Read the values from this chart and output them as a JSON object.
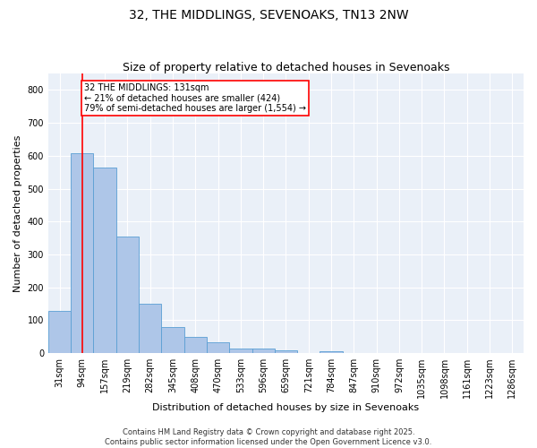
{
  "title": "32, THE MIDDLINGS, SEVENOAKS, TN13 2NW",
  "subtitle": "Size of property relative to detached houses in Sevenoaks",
  "xlabel": "Distribution of detached houses by size in Sevenoaks",
  "ylabel": "Number of detached properties",
  "bar_labels": [
    "31sqm",
    "94sqm",
    "157sqm",
    "219sqm",
    "282sqm",
    "345sqm",
    "408sqm",
    "470sqm",
    "533sqm",
    "596sqm",
    "659sqm",
    "721sqm",
    "784sqm",
    "847sqm",
    "910sqm",
    "972sqm",
    "1035sqm",
    "1098sqm",
    "1161sqm",
    "1223sqm",
    "1286sqm"
  ],
  "bar_values": [
    128,
    607,
    565,
    355,
    150,
    78,
    50,
    32,
    13,
    13,
    8,
    0,
    7,
    0,
    0,
    0,
    0,
    0,
    0,
    0,
    0
  ],
  "bar_color": "#aec6e8",
  "bar_edge_color": "#5a9fd4",
  "property_line_x": 1.0,
  "annotation_text": "32 THE MIDDLINGS: 131sqm\n← 21% of detached houses are smaller (424)\n79% of semi-detached houses are larger (1,554) →",
  "annotation_box_color": "white",
  "annotation_box_edge_color": "red",
  "vline_color": "red",
  "ylim": [
    0,
    850
  ],
  "yticks": [
    0,
    100,
    200,
    300,
    400,
    500,
    600,
    700,
    800
  ],
  "background_color": "#eaf0f8",
  "grid_color": "white",
  "footer_line1": "Contains HM Land Registry data © Crown copyright and database right 2025.",
  "footer_line2": "Contains public sector information licensed under the Open Government Licence v3.0.",
  "title_fontsize": 10,
  "subtitle_fontsize": 9,
  "axis_label_fontsize": 8,
  "tick_fontsize": 7,
  "footer_fontsize": 6
}
